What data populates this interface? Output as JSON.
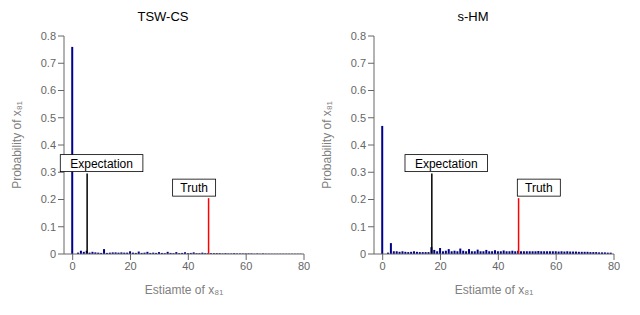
{
  "chart_data": [
    {
      "type": "bar",
      "title": "TSW-CS",
      "x_label": "Estiamte of x₈₁",
      "y_label": "Probability of x₈₁",
      "xlim": [
        -3,
        80
      ],
      "ylim": [
        0,
        0.8
      ],
      "xticks": [
        0,
        20,
        40,
        60,
        80
      ],
      "yticks": [
        0,
        0.1,
        0.2,
        0.3,
        0.4,
        0.5,
        0.6,
        0.7,
        0.8
      ],
      "color": "#00008B",
      "grid": false,
      "x": [
        0,
        1,
        2,
        3,
        4,
        5,
        6,
        7,
        8,
        9,
        10,
        11,
        12,
        13,
        14,
        15,
        16,
        17,
        18,
        19,
        20,
        21,
        22,
        23,
        24,
        25,
        26,
        27,
        28,
        29,
        30,
        31,
        32,
        33,
        34,
        35,
        36,
        37,
        38,
        39,
        40,
        41,
        42,
        43,
        44,
        45,
        46,
        47,
        48,
        49,
        50,
        51,
        52,
        53,
        54,
        55,
        56,
        57,
        58,
        59,
        60,
        61,
        62,
        63,
        64,
        65,
        66,
        67,
        68,
        69,
        70,
        71,
        72,
        73,
        74,
        75,
        76,
        77,
        78,
        79
      ],
      "values": [
        0.76,
        0.0,
        0.005,
        0.012,
        0.008,
        0.012,
        0.005,
        0.008,
        0.006,
        0.005,
        0.004,
        0.018,
        0.004,
        0.005,
        0.006,
        0.006,
        0.005,
        0.006,
        0.005,
        0.005,
        0.01,
        0.005,
        0.004,
        0.009,
        0.004,
        0.005,
        0.008,
        0.004,
        0.005,
        0.004,
        0.007,
        0.004,
        0.003,
        0.008,
        0.004,
        0.003,
        0.007,
        0.003,
        0.004,
        0.006,
        0.003,
        0.004,
        0.006,
        0.003,
        0.003,
        0.005,
        0.003,
        0.003,
        0.003,
        0.003,
        0.003,
        0.003,
        0.002,
        0.003,
        0.002,
        0.002,
        0.003,
        0.002,
        0.002,
        0.002,
        0.002,
        0.002,
        0.002,
        0.001,
        0.002,
        0.001,
        0.002,
        0.001,
        0.001,
        0.001,
        0.001,
        0.001,
        0.001,
        0.001,
        0.001,
        0.001,
        0.001,
        0.001,
        0.001,
        0.001
      ],
      "annotations": [
        {
          "text": "Expectation",
          "x": 5,
          "text_x": 10,
          "text_y": 0.295,
          "color": "black"
        },
        {
          "text": "Truth",
          "x": 47,
          "text_x": 42,
          "text_y": 0.205,
          "color": "red"
        }
      ]
    },
    {
      "type": "bar",
      "title": "s-HM",
      "x_label": "Estiamte of x₈₁",
      "y_label": "Probability of x₈₁",
      "xlim": [
        -3,
        80
      ],
      "ylim": [
        0,
        0.8
      ],
      "xticks": [
        0,
        20,
        40,
        60,
        80
      ],
      "yticks": [
        0,
        0.1,
        0.2,
        0.3,
        0.4,
        0.5,
        0.6,
        0.7,
        0.8
      ],
      "color": "#00008B",
      "grid": false,
      "x": [
        0,
        1,
        2,
        3,
        4,
        5,
        6,
        7,
        8,
        9,
        10,
        11,
        12,
        13,
        14,
        15,
        16,
        17,
        18,
        19,
        20,
        21,
        22,
        23,
        24,
        25,
        26,
        27,
        28,
        29,
        30,
        31,
        32,
        33,
        34,
        35,
        36,
        37,
        38,
        39,
        40,
        41,
        42,
        43,
        44,
        45,
        46,
        47,
        48,
        49,
        50,
        51,
        52,
        53,
        54,
        55,
        56,
        57,
        58,
        59,
        60,
        61,
        62,
        63,
        64,
        65,
        66,
        67,
        68,
        69,
        70,
        71,
        72,
        73,
        74,
        75,
        76,
        77,
        78,
        79
      ],
      "values": [
        0.47,
        0.0,
        0.005,
        0.04,
        0.01,
        0.01,
        0.008,
        0.01,
        0.008,
        0.007,
        0.008,
        0.01,
        0.008,
        0.007,
        0.007,
        0.007,
        0.007,
        0.025,
        0.015,
        0.01,
        0.022,
        0.01,
        0.012,
        0.018,
        0.01,
        0.012,
        0.01,
        0.02,
        0.012,
        0.01,
        0.018,
        0.01,
        0.01,
        0.016,
        0.01,
        0.01,
        0.015,
        0.01,
        0.01,
        0.014,
        0.01,
        0.01,
        0.013,
        0.01,
        0.01,
        0.012,
        0.01,
        0.012,
        0.01,
        0.01,
        0.01,
        0.01,
        0.01,
        0.01,
        0.011,
        0.01,
        0.01,
        0.01,
        0.01,
        0.01,
        0.01,
        0.009,
        0.01,
        0.009,
        0.01,
        0.009,
        0.009,
        0.009,
        0.008,
        0.008,
        0.008,
        0.008,
        0.007,
        0.007,
        0.007,
        0.006,
        0.006,
        0.006,
        0.005,
        0.005
      ],
      "annotations": [
        {
          "text": "Expectation",
          "x": 17,
          "text_x": 22,
          "text_y": 0.295,
          "color": "black"
        },
        {
          "text": "Truth",
          "x": 47,
          "text_x": 54,
          "text_y": 0.205,
          "color": "red"
        }
      ]
    }
  ]
}
